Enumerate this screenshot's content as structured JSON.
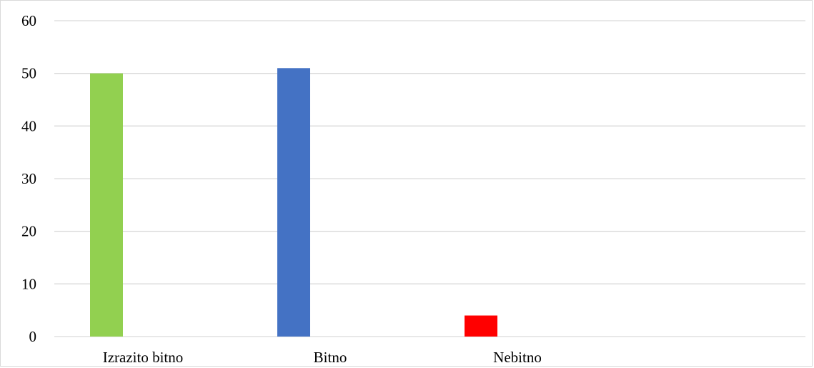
{
  "chart_data": {
    "type": "bar",
    "title": "",
    "xlabel": "",
    "ylabel": "",
    "categories": [
      "Izrazito bitno",
      "Bitno",
      "Nebitno"
    ],
    "values": [
      50,
      51,
      4
    ],
    "ylim": [
      0,
      60
    ],
    "yticks": [
      0,
      10,
      20,
      30,
      40,
      50,
      60
    ],
    "ytick_labels": [
      "0",
      "10",
      "20",
      "30",
      "40",
      "50",
      "60"
    ],
    "grid": true,
    "legend": "none",
    "colors": [
      "#92d050",
      "#4472c4",
      "#ff0000"
    ]
  },
  "style": {
    "grid_color": "#d9d9d9",
    "axis_color": "#d9d9d9"
  }
}
